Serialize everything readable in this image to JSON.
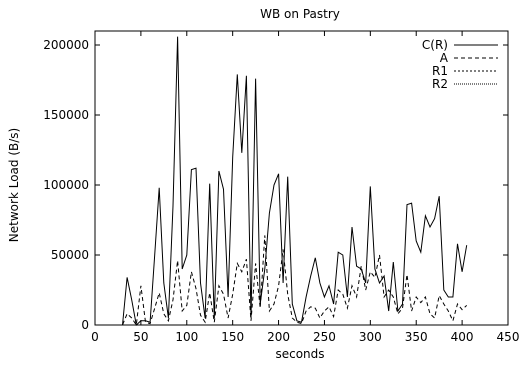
{
  "chart_data": {
    "type": "line",
    "title": "WB on Pastry",
    "xlabel": "seconds",
    "ylabel": "Network Load (B/s)",
    "xlim": [
      0,
      450
    ],
    "ylim": [
      0,
      210000
    ],
    "xticks": [
      0,
      50,
      100,
      150,
      200,
      250,
      300,
      350,
      400,
      450
    ],
    "yticks": [
      0,
      50000,
      100000,
      150000,
      200000
    ],
    "grid": false,
    "legend_position": "top-right",
    "series": [
      {
        "name": "C(R)",
        "dash": "solid",
        "x": [
          0,
          5,
          10,
          15,
          20,
          25,
          30,
          35,
          40,
          45,
          50,
          55,
          60,
          65,
          70,
          75,
          80,
          85,
          90,
          95,
          100,
          105,
          110,
          115,
          120,
          125,
          130,
          135,
          140,
          145,
          150,
          155,
          160,
          165,
          170,
          175,
          180,
          185,
          190,
          195,
          200,
          205,
          210,
          215,
          220,
          225,
          230,
          235,
          240,
          245,
          250,
          255,
          260,
          265,
          270,
          275,
          280,
          285,
          290,
          295,
          300,
          305,
          310,
          315,
          320,
          325,
          330,
          335,
          340,
          345,
          350,
          355,
          360,
          365,
          370,
          375,
          380,
          385,
          390,
          395,
          400,
          405
        ],
        "y": [
          0,
          0,
          0,
          0,
          0,
          0,
          0,
          34000,
          18000,
          0,
          3000,
          3000,
          2000,
          50000,
          98000,
          30000,
          5000,
          85000,
          206000,
          40000,
          50000,
          111000,
          112000,
          30000,
          5000,
          101000,
          5000,
          110000,
          97000,
          20000,
          120000,
          179000,
          123000,
          178000,
          5000,
          176000,
          15000,
          40000,
          80000,
          100000,
          108000,
          30000,
          106000,
          15000,
          3000,
          2000,
          20000,
          35000,
          48000,
          30000,
          20000,
          28000,
          15000,
          52000,
          50000,
          20000,
          70000,
          42000,
          40000,
          30000,
          99000,
          40000,
          30000,
          35000,
          10000,
          45000,
          10000,
          15000,
          86000,
          87000,
          60000,
          52000,
          78000,
          70000,
          76000,
          92000,
          25000,
          20000,
          20000,
          58000,
          38000,
          57000
        ]
      },
      {
        "name": "A",
        "dash": "dashed",
        "x": [
          0,
          5,
          10,
          15,
          20,
          25,
          30,
          35,
          40,
          45,
          50,
          55,
          60,
          65,
          70,
          75,
          80,
          85,
          90,
          95,
          100,
          105,
          110,
          115,
          120,
          125,
          130,
          135,
          140,
          145,
          150,
          155,
          160,
          165,
          170,
          175,
          180,
          185,
          190,
          195,
          200,
          205,
          210,
          215,
          220,
          225,
          230,
          235,
          240,
          245,
          250,
          255,
          260,
          265,
          270,
          275,
          280,
          285,
          290,
          295,
          300,
          305,
          310,
          315,
          320,
          325,
          330,
          335,
          340,
          345,
          350,
          355,
          360,
          365,
          370,
          375,
          380,
          385,
          390,
          395,
          400,
          405
        ],
        "y": [
          0,
          0,
          0,
          0,
          0,
          0,
          0,
          8000,
          5000,
          0,
          28000,
          2000,
          1000,
          12000,
          23000,
          8000,
          3000,
          18000,
          46000,
          10000,
          14000,
          38000,
          26000,
          7000,
          2000,
          23000,
          2000,
          28000,
          22000,
          5000,
          22000,
          44000,
          38000,
          47000,
          3000,
          44000,
          12000,
          64000,
          10000,
          15000,
          28000,
          54000,
          22000,
          5000,
          2000,
          1000,
          10000,
          13000,
          12000,
          5000,
          10000,
          13000,
          6000,
          25000,
          22000,
          12000,
          28000,
          20000,
          42000,
          25000,
          38000,
          34000,
          50000,
          20000,
          25000,
          20000,
          8000,
          12000,
          36000,
          10000,
          20000,
          16000,
          20000,
          8000,
          5000,
          21000,
          15000,
          10000,
          3000,
          15000,
          11000,
          14000
        ]
      },
      {
        "name": "R1",
        "dash": "dotted",
        "x": [
          0,
          100,
          200,
          300,
          400,
          405
        ],
        "y": [
          0,
          0,
          0,
          0,
          0,
          0
        ]
      },
      {
        "name": "R2",
        "dash": "dense-dotted",
        "x": [
          0,
          100,
          200,
          300,
          400,
          405
        ],
        "y": [
          0,
          0,
          0,
          0,
          0,
          0
        ]
      }
    ]
  }
}
